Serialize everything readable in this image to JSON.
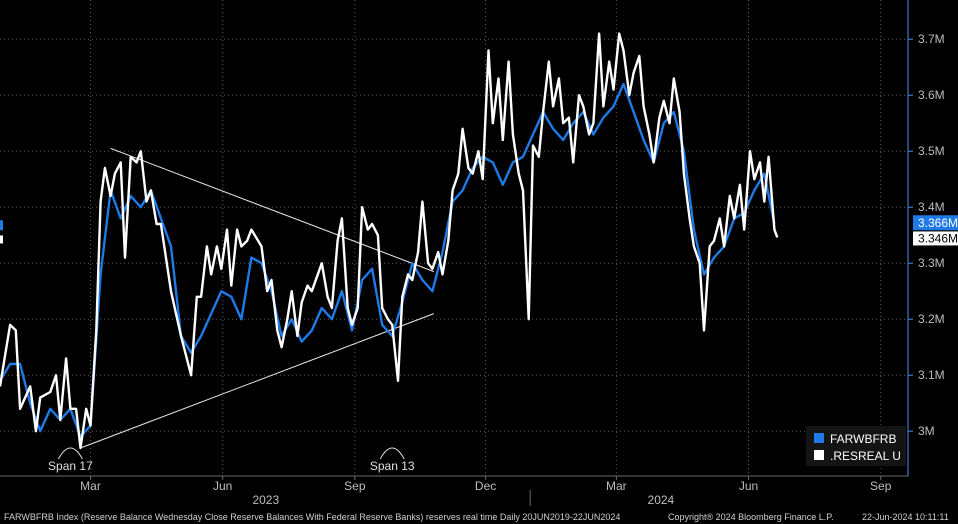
{
  "chart_data": {
    "type": "line",
    "title": "",
    "y_ticks": [
      "3M",
      "3.1M",
      "3.2M",
      "3.3M",
      "3.4M",
      "3.5M",
      "3.6M",
      "3.7M"
    ],
    "y_tick_values": [
      3.0,
      3.1,
      3.2,
      3.3,
      3.4,
      3.5,
      3.6,
      3.7
    ],
    "ylim": [
      2.92,
      3.77
    ],
    "x_ticks": [
      {
        "label": "Mar",
        "date": "2023-03-01"
      },
      {
        "label": "Jun",
        "date": "2023-06-01"
      },
      {
        "label": "Sep",
        "date": "2023-09-01"
      },
      {
        "label": "Dec",
        "date": "2023-12-01"
      },
      {
        "label": "Mar",
        "date": "2024-03-01"
      },
      {
        "label": "Jun",
        "date": "2024-06-01"
      },
      {
        "label": "Sep",
        "date": "2024-09-01"
      }
    ],
    "year_labels": [
      {
        "label": "2023",
        "date": "2023-07-01"
      },
      {
        "label": "2024",
        "date": "2024-04-01"
      }
    ],
    "xlim": [
      "2022-12-28",
      "2024-09-20"
    ],
    "grid": true,
    "legend_position": "bottom-right",
    "series": [
      {
        "name": "FARWBFRB",
        "color": "#1e7ae6",
        "last_value_label": "3.366M",
        "points": [
          [
            "2022-12-28",
            3.09
          ],
          [
            "2023-01-04",
            3.12
          ],
          [
            "2023-01-11",
            3.12
          ],
          [
            "2023-01-18",
            3.05
          ],
          [
            "2023-01-25",
            3.0
          ],
          [
            "2023-02-01",
            3.04
          ],
          [
            "2023-02-08",
            3.02
          ],
          [
            "2023-02-15",
            3.04
          ],
          [
            "2023-02-22",
            2.99
          ],
          [
            "2023-03-01",
            3.01
          ],
          [
            "2023-03-08",
            3.28
          ],
          [
            "2023-03-15",
            3.43
          ],
          [
            "2023-03-22",
            3.38
          ],
          [
            "2023-03-29",
            3.42
          ],
          [
            "2023-04-05",
            3.4
          ],
          [
            "2023-04-12",
            3.43
          ],
          [
            "2023-04-19",
            3.38
          ],
          [
            "2023-04-26",
            3.33
          ],
          [
            "2023-05-03",
            3.17
          ],
          [
            "2023-05-10",
            3.14
          ],
          [
            "2023-05-17",
            3.17
          ],
          [
            "2023-05-24",
            3.21
          ],
          [
            "2023-05-31",
            3.25
          ],
          [
            "2023-06-07",
            3.24
          ],
          [
            "2023-06-14",
            3.2
          ],
          [
            "2023-06-21",
            3.31
          ],
          [
            "2023-06-28",
            3.3
          ],
          [
            "2023-07-05",
            3.25
          ],
          [
            "2023-07-12",
            3.17
          ],
          [
            "2023-07-19",
            3.2
          ],
          [
            "2023-07-26",
            3.16
          ],
          [
            "2023-08-02",
            3.18
          ],
          [
            "2023-08-09",
            3.22
          ],
          [
            "2023-08-16",
            3.2
          ],
          [
            "2023-08-23",
            3.25
          ],
          [
            "2023-08-30",
            3.18
          ],
          [
            "2023-09-06",
            3.27
          ],
          [
            "2023-09-13",
            3.29
          ],
          [
            "2023-09-20",
            3.19
          ],
          [
            "2023-09-27",
            3.17
          ],
          [
            "2023-10-04",
            3.23
          ],
          [
            "2023-10-11",
            3.3
          ],
          [
            "2023-10-18",
            3.27
          ],
          [
            "2023-10-25",
            3.25
          ],
          [
            "2023-11-01",
            3.32
          ],
          [
            "2023-11-08",
            3.41
          ],
          [
            "2023-11-15",
            3.43
          ],
          [
            "2023-11-22",
            3.47
          ],
          [
            "2023-11-29",
            3.49
          ],
          [
            "2023-12-06",
            3.48
          ],
          [
            "2023-12-13",
            3.44
          ],
          [
            "2023-12-20",
            3.48
          ],
          [
            "2023-12-27",
            3.49
          ],
          [
            "2024-01-03",
            3.53
          ],
          [
            "2024-01-10",
            3.57
          ],
          [
            "2024-01-17",
            3.54
          ],
          [
            "2024-01-24",
            3.52
          ],
          [
            "2024-01-31",
            3.55
          ],
          [
            "2024-02-07",
            3.57
          ],
          [
            "2024-02-14",
            3.53
          ],
          [
            "2024-02-21",
            3.56
          ],
          [
            "2024-02-28",
            3.58
          ],
          [
            "2024-03-06",
            3.62
          ],
          [
            "2024-03-13",
            3.57
          ],
          [
            "2024-03-20",
            3.52
          ],
          [
            "2024-03-27",
            3.48
          ],
          [
            "2024-04-03",
            3.55
          ],
          [
            "2024-04-10",
            3.57
          ],
          [
            "2024-04-17",
            3.5
          ],
          [
            "2024-04-24",
            3.36
          ],
          [
            "2024-05-01",
            3.28
          ],
          [
            "2024-05-08",
            3.31
          ],
          [
            "2024-05-15",
            3.33
          ],
          [
            "2024-05-22",
            3.38
          ],
          [
            "2024-05-29",
            3.39
          ],
          [
            "2024-06-05",
            3.43
          ],
          [
            "2024-06-12",
            3.46
          ],
          [
            "2024-06-19",
            3.37
          ]
        ]
      },
      {
        "name": ".RESREAL U",
        "color": "#ffffff",
        "last_value_label": "3.346M",
        "points": [
          [
            "2022-12-28",
            3.08
          ],
          [
            "2023-01-04",
            3.19
          ],
          [
            "2023-01-08",
            3.18
          ],
          [
            "2023-01-11",
            3.04
          ],
          [
            "2023-01-18",
            3.08
          ],
          [
            "2023-01-22",
            3.0
          ],
          [
            "2023-01-25",
            3.06
          ],
          [
            "2023-02-01",
            3.07
          ],
          [
            "2023-02-05",
            3.1
          ],
          [
            "2023-02-08",
            3.02
          ],
          [
            "2023-02-12",
            3.13
          ],
          [
            "2023-02-15",
            3.04
          ],
          [
            "2023-02-19",
            3.04
          ],
          [
            "2023-02-22",
            2.97
          ],
          [
            "2023-02-26",
            3.04
          ],
          [
            "2023-03-01",
            3.01
          ],
          [
            "2023-03-05",
            3.18
          ],
          [
            "2023-03-08",
            3.41
          ],
          [
            "2023-03-11",
            3.47
          ],
          [
            "2023-03-15",
            3.42
          ],
          [
            "2023-03-18",
            3.46
          ],
          [
            "2023-03-22",
            3.48
          ],
          [
            "2023-03-25",
            3.31
          ],
          [
            "2023-03-29",
            3.49
          ],
          [
            "2023-04-02",
            3.48
          ],
          [
            "2023-04-05",
            3.5
          ],
          [
            "2023-04-09",
            3.41
          ],
          [
            "2023-04-12",
            3.43
          ],
          [
            "2023-04-16",
            3.37
          ],
          [
            "2023-04-19",
            3.37
          ],
          [
            "2023-04-26",
            3.25
          ],
          [
            "2023-05-03",
            3.17
          ],
          [
            "2023-05-07",
            3.13
          ],
          [
            "2023-05-10",
            3.1
          ],
          [
            "2023-05-14",
            3.24
          ],
          [
            "2023-05-17",
            3.24
          ],
          [
            "2023-05-21",
            3.33
          ],
          [
            "2023-05-24",
            3.28
          ],
          [
            "2023-05-28",
            3.33
          ],
          [
            "2023-05-31",
            3.29
          ],
          [
            "2023-06-04",
            3.36
          ],
          [
            "2023-06-07",
            3.26
          ],
          [
            "2023-06-11",
            3.36
          ],
          [
            "2023-06-14",
            3.33
          ],
          [
            "2023-06-18",
            3.34
          ],
          [
            "2023-06-21",
            3.36
          ],
          [
            "2023-06-28",
            3.33
          ],
          [
            "2023-07-02",
            3.25
          ],
          [
            "2023-07-05",
            3.27
          ],
          [
            "2023-07-09",
            3.18
          ],
          [
            "2023-07-12",
            3.15
          ],
          [
            "2023-07-16",
            3.2
          ],
          [
            "2023-07-19",
            3.25
          ],
          [
            "2023-07-23",
            3.17
          ],
          [
            "2023-07-26",
            3.23
          ],
          [
            "2023-07-30",
            3.26
          ],
          [
            "2023-08-02",
            3.25
          ],
          [
            "2023-08-09",
            3.3
          ],
          [
            "2023-08-13",
            3.24
          ],
          [
            "2023-08-16",
            3.22
          ],
          [
            "2023-08-20",
            3.34
          ],
          [
            "2023-08-23",
            3.38
          ],
          [
            "2023-08-27",
            3.22
          ],
          [
            "2023-08-30",
            3.19
          ],
          [
            "2023-09-03",
            3.22
          ],
          [
            "2023-09-06",
            3.4
          ],
          [
            "2023-09-10",
            3.36
          ],
          [
            "2023-09-13",
            3.37
          ],
          [
            "2023-09-17",
            3.35
          ],
          [
            "2023-09-20",
            3.22
          ],
          [
            "2023-09-24",
            3.2
          ],
          [
            "2023-09-27",
            3.19
          ],
          [
            "2023-10-01",
            3.09
          ],
          [
            "2023-10-04",
            3.24
          ],
          [
            "2023-10-08",
            3.28
          ],
          [
            "2023-10-11",
            3.27
          ],
          [
            "2023-10-15",
            3.32
          ],
          [
            "2023-10-18",
            3.41
          ],
          [
            "2023-10-22",
            3.3
          ],
          [
            "2023-10-25",
            3.29
          ],
          [
            "2023-10-29",
            3.32
          ],
          [
            "2023-11-01",
            3.28
          ],
          [
            "2023-11-05",
            3.34
          ],
          [
            "2023-11-08",
            3.43
          ],
          [
            "2023-11-12",
            3.46
          ],
          [
            "2023-11-15",
            3.54
          ],
          [
            "2023-11-19",
            3.47
          ],
          [
            "2023-11-22",
            3.46
          ],
          [
            "2023-11-26",
            3.5
          ],
          [
            "2023-11-29",
            3.45
          ],
          [
            "2023-12-03",
            3.68
          ],
          [
            "2023-12-06",
            3.55
          ],
          [
            "2023-12-10",
            3.63
          ],
          [
            "2023-12-13",
            3.52
          ],
          [
            "2023-12-17",
            3.66
          ],
          [
            "2023-12-20",
            3.53
          ],
          [
            "2023-12-24",
            3.46
          ],
          [
            "2023-12-27",
            3.43
          ],
          [
            "2023-12-31",
            3.2
          ],
          [
            "2024-01-03",
            3.51
          ],
          [
            "2024-01-07",
            3.49
          ],
          [
            "2024-01-10",
            3.57
          ],
          [
            "2024-01-14",
            3.66
          ],
          [
            "2024-01-17",
            3.58
          ],
          [
            "2024-01-21",
            3.63
          ],
          [
            "2024-01-24",
            3.55
          ],
          [
            "2024-01-28",
            3.56
          ],
          [
            "2024-01-31",
            3.48
          ],
          [
            "2024-02-04",
            3.6
          ],
          [
            "2024-02-07",
            3.58
          ],
          [
            "2024-02-11",
            3.53
          ],
          [
            "2024-02-14",
            3.55
          ],
          [
            "2024-02-18",
            3.71
          ],
          [
            "2024-02-21",
            3.58
          ],
          [
            "2024-02-25",
            3.66
          ],
          [
            "2024-02-28",
            3.61
          ],
          [
            "2024-03-03",
            3.71
          ],
          [
            "2024-03-06",
            3.68
          ],
          [
            "2024-03-10",
            3.6
          ],
          [
            "2024-03-13",
            3.64
          ],
          [
            "2024-03-17",
            3.67
          ],
          [
            "2024-03-20",
            3.58
          ],
          [
            "2024-03-24",
            3.53
          ],
          [
            "2024-03-27",
            3.48
          ],
          [
            "2024-03-31",
            3.56
          ],
          [
            "2024-04-03",
            3.59
          ],
          [
            "2024-04-07",
            3.55
          ],
          [
            "2024-04-10",
            3.63
          ],
          [
            "2024-04-14",
            3.57
          ],
          [
            "2024-04-17",
            3.46
          ],
          [
            "2024-04-21",
            3.38
          ],
          [
            "2024-04-24",
            3.33
          ],
          [
            "2024-04-28",
            3.3
          ],
          [
            "2024-05-01",
            3.18
          ],
          [
            "2024-05-05",
            3.33
          ],
          [
            "2024-05-08",
            3.34
          ],
          [
            "2024-05-12",
            3.38
          ],
          [
            "2024-05-15",
            3.33
          ],
          [
            "2024-05-19",
            3.42
          ],
          [
            "2024-05-22",
            3.38
          ],
          [
            "2024-05-26",
            3.44
          ],
          [
            "2024-05-29",
            3.36
          ],
          [
            "2024-06-02",
            3.5
          ],
          [
            "2024-06-05",
            3.45
          ],
          [
            "2024-06-09",
            3.48
          ],
          [
            "2024-06-12",
            3.41
          ],
          [
            "2024-06-15",
            3.49
          ],
          [
            "2024-06-19",
            3.36
          ],
          [
            "2024-06-21",
            3.346
          ]
        ]
      }
    ],
    "trendlines": [
      {
        "from": [
          "2023-03-15",
          3.505
        ],
        "to": [
          "2023-10-26",
          3.285
        ]
      },
      {
        "from": [
          "2023-02-22",
          2.97
        ],
        "to": [
          "2023-10-26",
          3.21
        ]
      }
    ],
    "annotations": [
      {
        "text": "Span 17",
        "date": "2023-02-15"
      },
      {
        "text": "Span 13",
        "date": "2023-09-27"
      }
    ]
  },
  "footer": {
    "description": "FARWBFRB Index (Reserve Balance Wednesday Close Reserve Balances With Federal Reserve Banks) reserves real time  Daily 20JUN2019-22JUN2024",
    "copyright": "Copyright® 2024 Bloomberg Finance L.P.",
    "timestamp": "22-Jun-2024 10:11:11"
  }
}
